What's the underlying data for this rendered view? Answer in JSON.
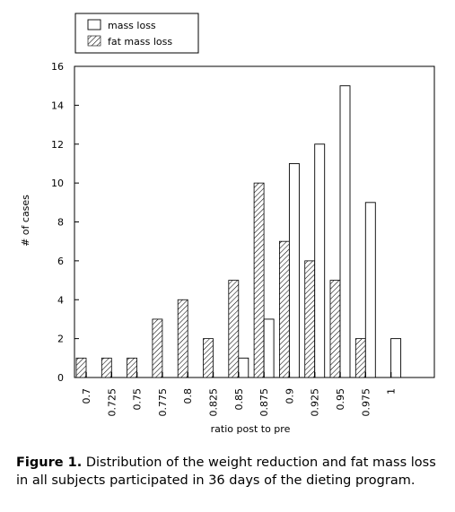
{
  "chart_data": {
    "type": "bar",
    "xlabel": "ratio post to pre",
    "ylabel": "# of cases",
    "ylim": [
      0,
      16
    ],
    "yticks": [
      0,
      2,
      4,
      6,
      8,
      10,
      12,
      14,
      16
    ],
    "categories": [
      "0.7",
      "0.725",
      "0.75",
      "0.775",
      "0.8",
      "0.825",
      "0.85",
      "0.875",
      "0.9",
      "0.925",
      "0.95",
      "0.975",
      "1"
    ],
    "legend_position": "top-left",
    "grid": false,
    "series": [
      {
        "name": "mass loss",
        "values": [
          0,
          0,
          0,
          0,
          0,
          0,
          1,
          3,
          11,
          12,
          15,
          9,
          2
        ]
      },
      {
        "name": "fat mass loss",
        "values": [
          1,
          1,
          1,
          3,
          4,
          2,
          5,
          10,
          7,
          6,
          5,
          2,
          0
        ]
      }
    ]
  },
  "caption": {
    "label": "Figure 1.",
    "text": "Distribution of the weight reduction and fat mass loss in all subjects participated in 36 days of the dieting program."
  }
}
